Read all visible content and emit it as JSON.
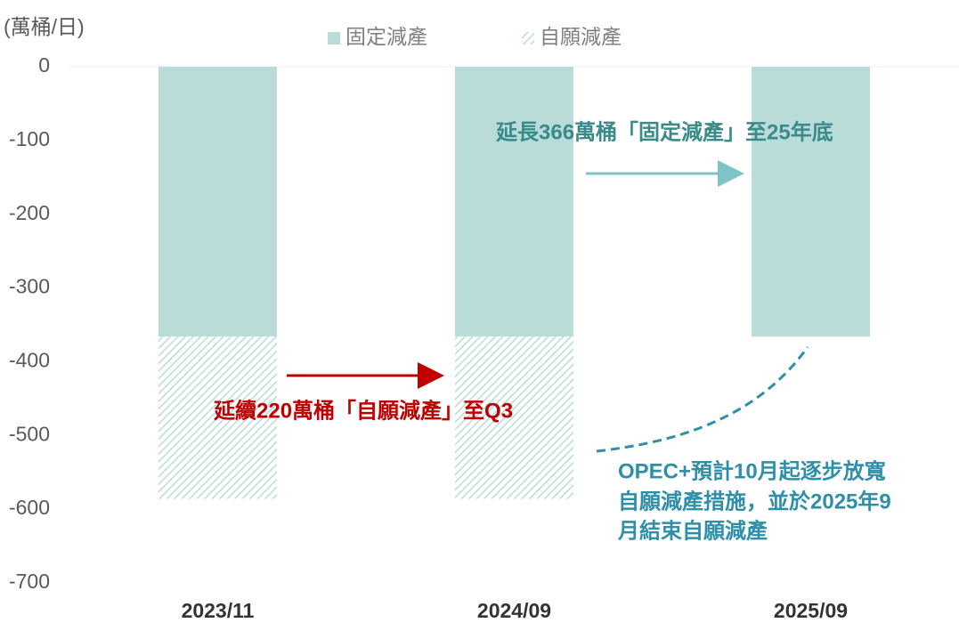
{
  "chart_data": {
    "type": "bar",
    "stacked": true,
    "y_label": "(萬桶/日)",
    "categories": [
      "2023/11",
      "2024/09",
      "2025/09"
    ],
    "series": [
      {
        "name": "固定減產",
        "color": "#b9dcd9",
        "values": [
          -366,
          -366,
          -366
        ]
      },
      {
        "name": "自願減產",
        "color": "#b9dcd9",
        "hatch": true,
        "values": [
          -220,
          -220,
          null
        ]
      }
    ],
    "ylim": [
      0,
      -700
    ],
    "yticks": [
      0,
      -100,
      -200,
      -300,
      -400,
      -500,
      -600,
      -700
    ],
    "annotations": [
      "延長366萬桶「固定減產」至25年底",
      "延續220萬桶「自願減產」至Q3",
      [
        "OPEC+預計10月起逐步放寬",
        "自願減產措施，並於2025年9",
        "月結束自願減產"
      ]
    ]
  }
}
